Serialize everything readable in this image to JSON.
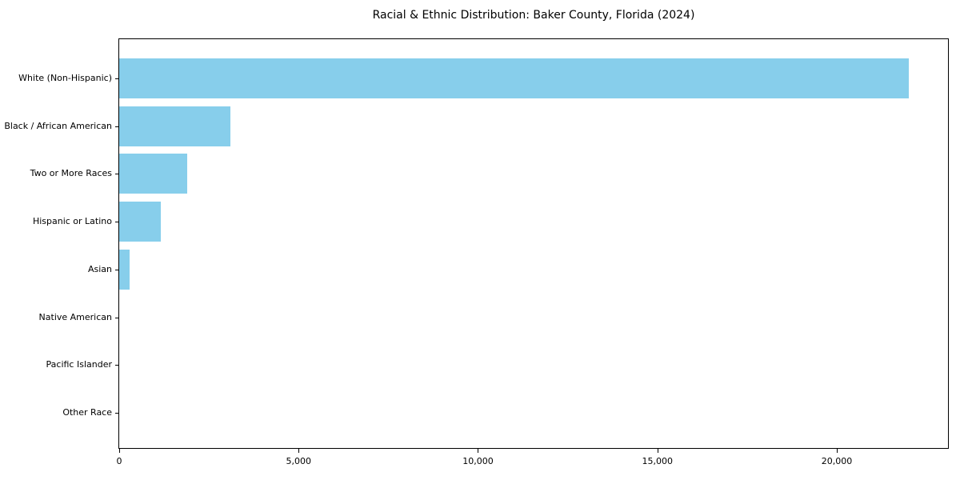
{
  "chart_data": {
    "type": "bar",
    "orientation": "horizontal",
    "title": "Racial & Ethnic Distribution: Baker County, Florida (2024)",
    "categories": [
      "White (Non-Hispanic)",
      "Black / African American",
      "Two or More Races",
      "Hispanic or Latino",
      "Asian",
      "Native American",
      "Pacific Islander",
      "Other Race"
    ],
    "values": [
      22000,
      3100,
      1900,
      1150,
      300,
      0,
      0,
      0
    ],
    "xlabel": "",
    "ylabel": "",
    "xlim": [
      0,
      23100
    ],
    "xticks": [
      0,
      5000,
      10000,
      15000,
      20000
    ],
    "xtick_labels": [
      "0",
      "5,000",
      "10,000",
      "15,000",
      "20,000"
    ],
    "grid": false,
    "legend": false,
    "bar_color": "#87CEEB",
    "axis_color": "#000000",
    "text_color": "#000000",
    "background_color": "#FFFFFF"
  }
}
